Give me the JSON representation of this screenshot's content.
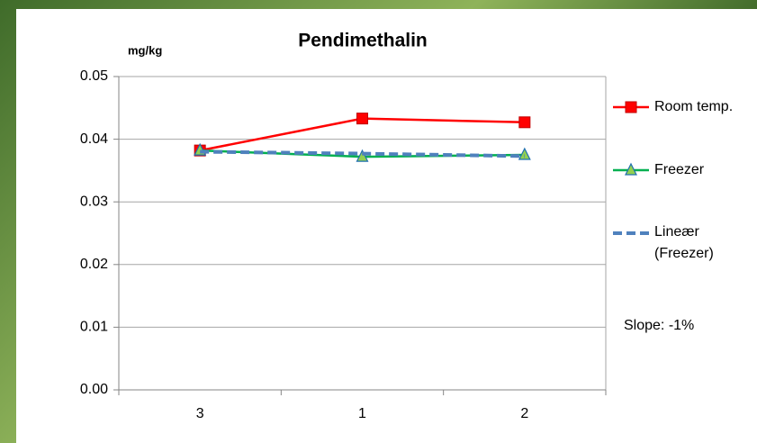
{
  "chart_data": {
    "type": "line",
    "title": "Pendimethalin",
    "y_label": "mg/kg",
    "annotation": "Slope:   -1%",
    "categories": [
      "3",
      "1",
      "2"
    ],
    "series": [
      {
        "name": "Room temp.",
        "color": "#ff0000",
        "marker": "square",
        "values": [
          0.0382,
          0.0433,
          0.0427
        ]
      },
      {
        "name": "Freezer",
        "color": "#00b050",
        "marker": "triangle",
        "values": [
          0.0382,
          0.0372,
          0.0375
        ]
      },
      {
        "name": "Lineær (Freezer)",
        "color": "#4f81bd",
        "dashed": true,
        "values": [
          0.038,
          0.0377,
          0.0373
        ]
      }
    ],
    "ylim": [
      0,
      0.05
    ],
    "yticks": [
      {
        "value": 0,
        "label": "0.00"
      },
      0.01,
      0.02,
      0.03,
      0.04,
      0.05
    ],
    "grid": true
  }
}
